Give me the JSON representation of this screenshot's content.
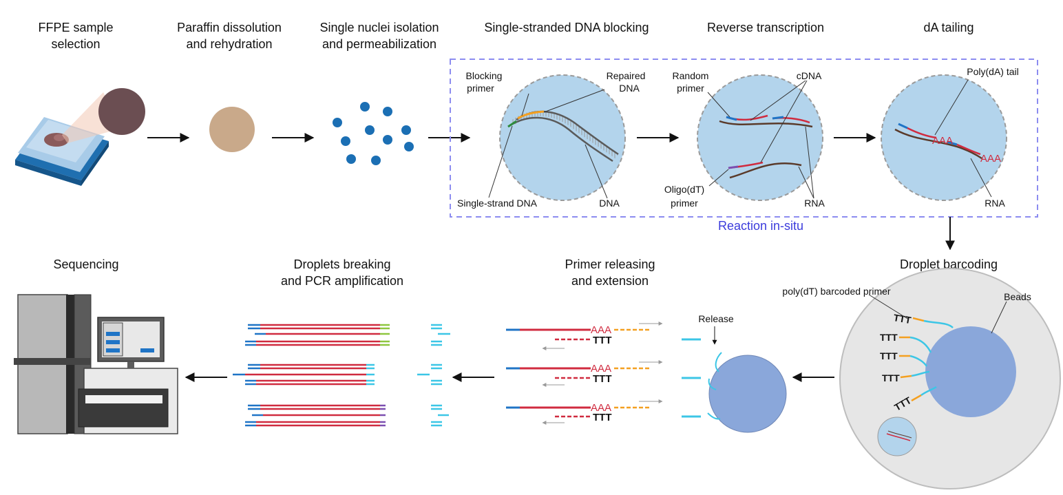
{
  "steps": {
    "s1": [
      "FFPE sample",
      "selection"
    ],
    "s2": [
      "Paraffin dissolution",
      "and rehydration"
    ],
    "s3": [
      "Single nuclei isolation",
      "and permeabilization"
    ],
    "s4": "Single-stranded DNA blocking",
    "s5": "Reverse transcription",
    "s6": "dA tailing",
    "s7": "Droplet barcoding",
    "s8": [
      "Primer releasing",
      "and extension"
    ],
    "s9": [
      "Droplets breaking",
      "and PCR amplification"
    ],
    "s10": "Sequencing"
  },
  "labels": {
    "blocking_primer": [
      "Blocking",
      "primer"
    ],
    "repaired_dna": [
      "Repaired",
      "DNA"
    ],
    "single_strand_dna": "Single-strand DNA",
    "dna": "DNA",
    "random_primer": [
      "Random",
      "primer"
    ],
    "cdna": "cDNA",
    "oligo_dt_primer": [
      "Oligo(dT)",
      "primer"
    ],
    "rna_rt": "RNA",
    "poly_da_tail": "Poly(dA) tail",
    "rna_tail": "RNA",
    "reaction_in_situ": "Reaction in-situ",
    "polydt_barcoded_primer": "poly(dT) barcoded primer",
    "beads": "Beads",
    "release": "Release",
    "aaa": "AAA",
    "ttt": "TTT"
  },
  "colors": {
    "droplet_blue": "#b3d4ec",
    "nuclei_blue": "#1b6fb4",
    "tissue_tan": "#c9a98a",
    "bead_blue": "#8aa7da",
    "rna_red": "#d02b3f",
    "dashed_box": "#8c8cf0",
    "cyan": "#3cc6e6",
    "orange": "#f4a020",
    "yellow": "#f5d43c",
    "purple": "#7c4fb0",
    "green": "#8ec63f",
    "primer_blue": "#1f74c6"
  }
}
